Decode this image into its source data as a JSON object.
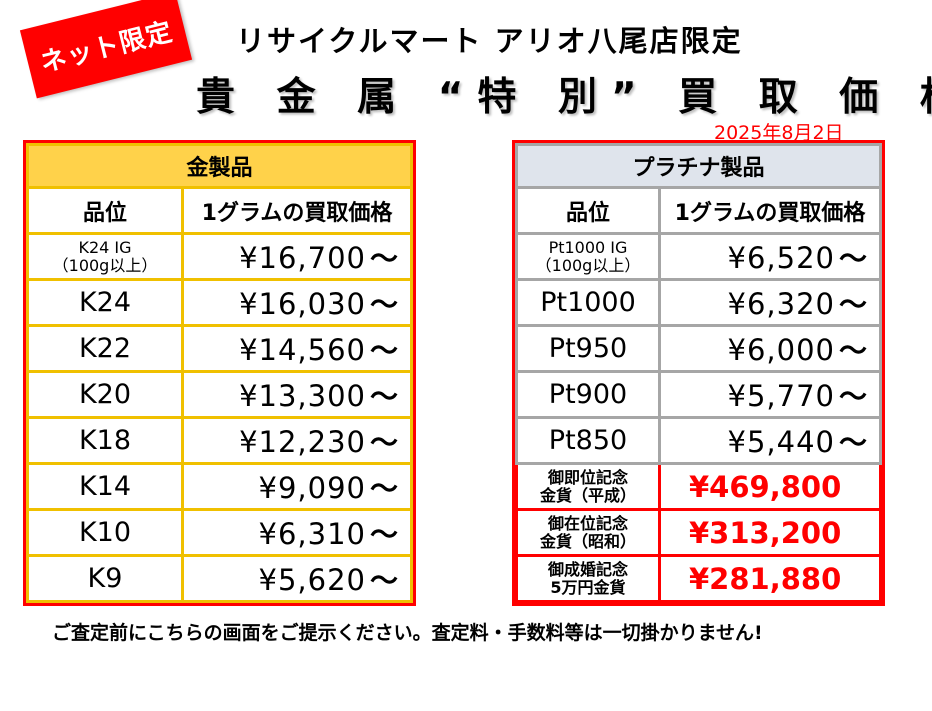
{
  "badge": "ネット限定",
  "store_line": "リサイクルマート アリオ八尾店限定",
  "headline": "貴 金 属 “特 別” 買 取 価 格",
  "date": "2025年8月2日",
  "gold": {
    "title": "金製品",
    "col_grade": "品位",
    "col_price": "1グラムの買取価格",
    "rows": [
      {
        "grade": "K24 IG",
        "sub": "（100g以上）",
        "price": "¥16,700",
        "mark": "～"
      },
      {
        "grade": "K24",
        "price": "¥16,030",
        "mark": "～"
      },
      {
        "grade": "K22",
        "price": "¥14,560",
        "mark": "～"
      },
      {
        "grade": "K20",
        "price": "¥13,300",
        "mark": "～"
      },
      {
        "grade": "K18",
        "price": "¥12,230",
        "mark": "～"
      },
      {
        "grade": "K14",
        "price": "¥9,090",
        "mark": "～"
      },
      {
        "grade": "K10",
        "price": "¥6,310",
        "mark": "～"
      },
      {
        "grade": "K9",
        "price": "¥5,620",
        "mark": "～"
      }
    ]
  },
  "platinum": {
    "title": "プラチナ製品",
    "col_grade": "品位",
    "col_price": "1グラムの買取価格",
    "rows": [
      {
        "grade": "Pt1000 IG",
        "sub": "（100g以上）",
        "price": "¥6,520",
        "mark": "～"
      },
      {
        "grade": "Pt1000",
        "price": "¥6,320",
        "mark": "～"
      },
      {
        "grade": "Pt950",
        "price": "¥6,000",
        "mark": "～"
      },
      {
        "grade": "Pt900",
        "price": "¥5,770",
        "mark": "～"
      },
      {
        "grade": "Pt850",
        "price": "¥5,440",
        "mark": "～"
      }
    ],
    "coins": [
      {
        "line1": "御即位記念",
        "line2": "金貨（平成）",
        "price": "¥469,800"
      },
      {
        "line1": "御在位記念",
        "line2": "金貨（昭和）",
        "price": "¥313,200"
      },
      {
        "line1": "御成婚記念",
        "line2": "5万円金貨",
        "price": "¥281,880"
      }
    ]
  },
  "note": "ご査定前にこちらの画面をご提示ください。査定料・手数料等は一切掛かりません!",
  "colors": {
    "accent_red": "#ff0000",
    "gold_header": "#ffd24a",
    "gold_border": "#f0c000",
    "plat_header": "#dfe4ec",
    "plat_border": "#a6a6a6"
  }
}
